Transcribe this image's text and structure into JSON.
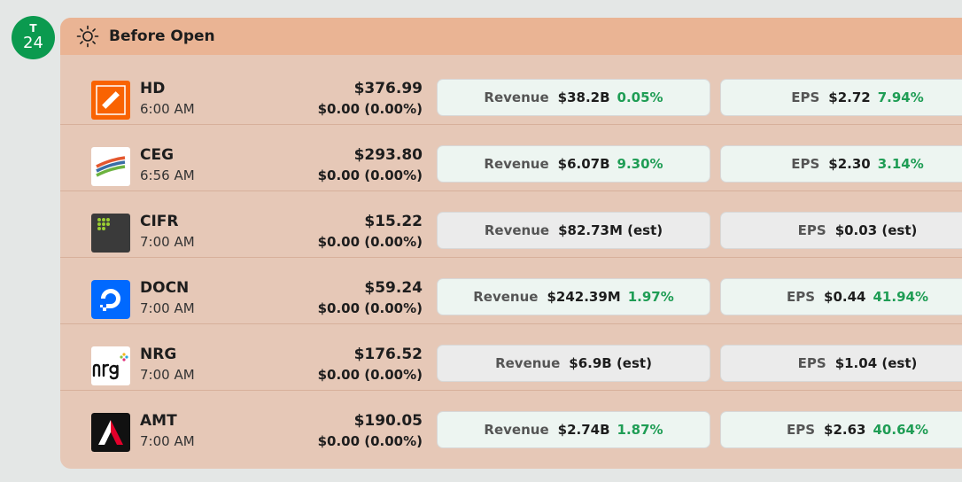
{
  "date_badge": {
    "dow": "T",
    "day": "24"
  },
  "session": {
    "title": "Before Open",
    "icon": "sun-icon"
  },
  "rows": [
    {
      "ticker": "HD",
      "time": "6:00 AM",
      "price": "$376.99",
      "change": "$0.00 (0.00%)",
      "logo": "home-depot-logo",
      "revenue": {
        "label": "Revenue",
        "value": "$38.2B",
        "pct": "0.05%"
      },
      "eps": {
        "label": "EPS",
        "value": "$2.72",
        "pct": "7.94%"
      }
    },
    {
      "ticker": "CEG",
      "time": "6:56 AM",
      "price": "$293.80",
      "change": "$0.00 (0.00%)",
      "logo": "constellation-logo",
      "revenue": {
        "label": "Revenue",
        "value": "$6.07B",
        "pct": "9.30%"
      },
      "eps": {
        "label": "EPS",
        "value": "$2.30",
        "pct": "3.14%"
      }
    },
    {
      "ticker": "CIFR",
      "time": "7:00 AM",
      "price": "$15.22",
      "change": "$0.00 (0.00%)",
      "logo": "cipher-mining-logo",
      "revenue": {
        "label": "Revenue",
        "value": "$82.73M (est)"
      },
      "eps": {
        "label": "EPS",
        "value": "$0.03 (est)"
      }
    },
    {
      "ticker": "DOCN",
      "time": "7:00 AM",
      "price": "$59.24",
      "change": "$0.00 (0.00%)",
      "logo": "digitalocean-logo",
      "revenue": {
        "label": "Revenue",
        "value": "$242.39M",
        "pct": "1.97%"
      },
      "eps": {
        "label": "EPS",
        "value": "$0.44",
        "pct": "41.94%"
      }
    },
    {
      "ticker": "NRG",
      "time": "7:00 AM",
      "price": "$176.52",
      "change": "$0.00 (0.00%)",
      "logo": "nrg-logo",
      "revenue": {
        "label": "Revenue",
        "value": "$6.9B (est)"
      },
      "eps": {
        "label": "EPS",
        "value": "$1.04 (est)"
      }
    },
    {
      "ticker": "AMT",
      "time": "7:00 AM",
      "price": "$190.05",
      "change": "$0.00 (0.00%)",
      "logo": "american-tower-logo",
      "revenue": {
        "label": "Revenue",
        "value": "$2.74B",
        "pct": "1.87%"
      },
      "eps": {
        "label": "EPS",
        "value": "$2.63",
        "pct": "40.64%"
      }
    }
  ]
}
